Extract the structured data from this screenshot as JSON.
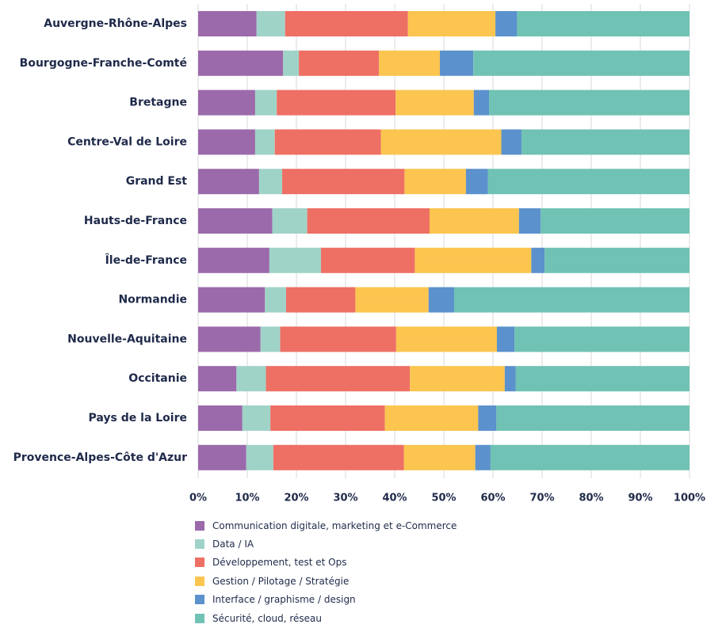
{
  "chart_data": {
    "type": "bar",
    "orientation": "horizontal",
    "stacked": true,
    "normalized": true,
    "title": "",
    "xlabel": "",
    "ylabel": "",
    "xlim": [
      0,
      100
    ],
    "x_tick_labels": [
      "0%",
      "10%",
      "20%",
      "30%",
      "40%",
      "50%",
      "60%",
      "70%",
      "80%",
      "90%",
      "100%"
    ],
    "grid": true,
    "legend_position": "bottom",
    "categories": [
      "Auvergne-Rhône-Alpes",
      "Bourgogne-Franche-Comté",
      "Bretagne",
      "Centre-Val de Loire",
      "Grand Est",
      "Hauts-de-France",
      "Île-de-France",
      "Normandie",
      "Nouvelle-Aquitaine",
      "Occitanie",
      "Pays de la Loire",
      "Provence-Alpes-Côte d'Azur"
    ],
    "series": [
      {
        "name": "Communication digitale, marketing et e-Commerce",
        "color": "#9b6aab",
        "values": [
          11.9,
          17.3,
          11.6,
          11.6,
          12.4,
          15.1,
          14.5,
          13.6,
          12.7,
          7.8,
          9.0,
          9.8
        ]
      },
      {
        "name": "Data / IA",
        "color": "#a0d3c8",
        "values": [
          5.8,
          3.2,
          4.4,
          4.0,
          4.7,
          7.1,
          10.5,
          4.3,
          4.0,
          6.0,
          5.7,
          5.5
        ]
      },
      {
        "name": "Développement, test et Ops",
        "color": "#ee6f64",
        "values": [
          25.0,
          16.3,
          24.2,
          21.6,
          24.9,
          24.9,
          19.1,
          14.1,
          23.6,
          29.3,
          23.3,
          26.6
        ]
      },
      {
        "name": "Gestion / Pilotage / Stratégie",
        "color": "#fbc54f",
        "values": [
          17.8,
          12.4,
          15.9,
          24.5,
          12.5,
          18.2,
          23.7,
          14.9,
          20.5,
          19.3,
          19.0,
          14.5
        ]
      },
      {
        "name": "Interface / graphisme / design",
        "color": "#5b91cc",
        "values": [
          4.4,
          6.8,
          3.1,
          4.1,
          4.5,
          4.4,
          2.7,
          5.2,
          3.6,
          2.2,
          3.7,
          3.1
        ]
      },
      {
        "name": "Sécurité, cloud, réseau",
        "color": "#70c2b4",
        "values": [
          35.1,
          44.0,
          40.8,
          34.2,
          41.0,
          30.3,
          29.5,
          47.9,
          35.6,
          35.4,
          39.3,
          40.5
        ]
      }
    ]
  }
}
